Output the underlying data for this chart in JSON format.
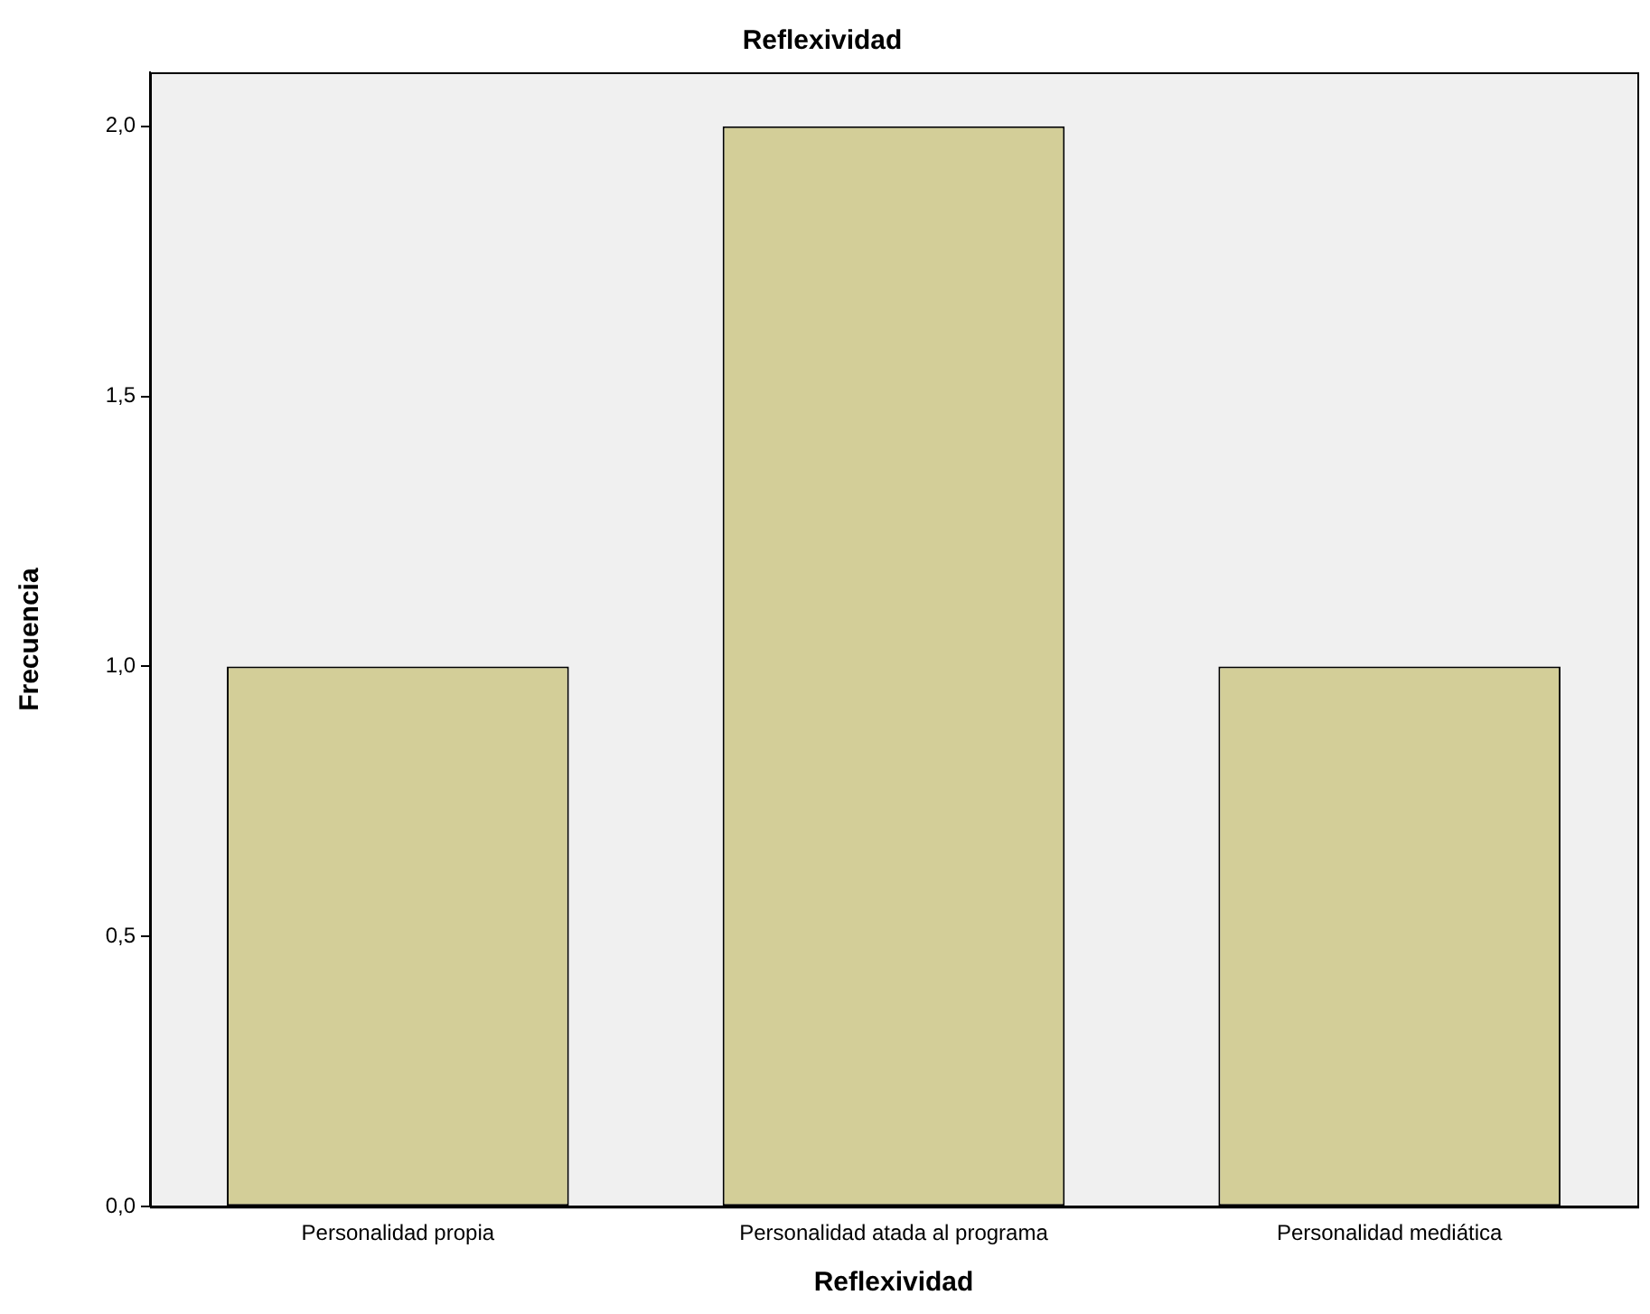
{
  "chart_data": {
    "type": "bar",
    "title": "Reflexividad",
    "xlabel": "Reflexividad",
    "ylabel": "Frecuencia",
    "categories": [
      "Personalidad propia",
      "Personalidad atada al programa",
      "Personalidad mediática"
    ],
    "values": [
      1,
      2,
      1
    ],
    "color": "#d3ce98",
    "ylim": [
      0,
      2.1
    ],
    "yticks": [
      {
        "value": 0,
        "label": "0,0"
      },
      {
        "value": 0.5,
        "label": "0,5"
      },
      {
        "value": 1,
        "label": "1,0"
      },
      {
        "value": 1.5,
        "label": "1,5"
      },
      {
        "value": 2,
        "label": "2,0"
      }
    ],
    "grid": false,
    "legend": false
  }
}
